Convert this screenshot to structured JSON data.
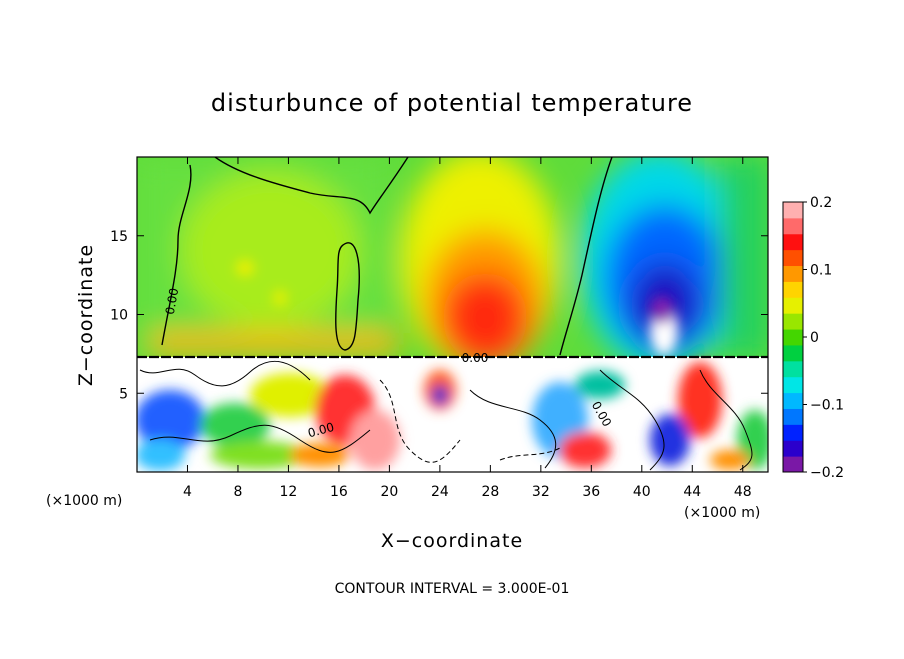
{
  "chart_data": {
    "type": "heatmap",
    "title": "disturbunce of potential temperature",
    "xlabel": "X−coordinate",
    "ylabel": "Z−coordinate",
    "x_unit": "(×1000 m)",
    "y_unit": "(×1000 m)",
    "xlim": [
      0,
      50
    ],
    "ylim": [
      0,
      20
    ],
    "x_ticks": [
      4,
      8,
      12,
      16,
      20,
      24,
      28,
      32,
      36,
      40,
      44,
      48
    ],
    "y_ticks": [
      5,
      10,
      15
    ],
    "x_tick_labels": [
      "4",
      "8",
      "12",
      "16",
      "20",
      "24",
      "28",
      "32",
      "36",
      "40",
      "44",
      "48"
    ],
    "y_tick_labels": [
      "5",
      "10",
      "15"
    ],
    "colorbar": {
      "range": [
        -0.2,
        0.2
      ],
      "tick_labels": [
        "0.2",
        "0.1",
        "0",
        "−0.1",
        "−0.2"
      ],
      "colors": [
        "#7a18a6",
        "#2b00cc",
        "#0022ff",
        "#0077ff",
        "#00b8ff",
        "#00e6e6",
        "#00e0a0",
        "#00d040",
        "#44d600",
        "#99e600",
        "#e6f000",
        "#ffd400",
        "#ff9800",
        "#ff5000",
        "#ff1010",
        "#ff6a6a",
        "#ffb0b0"
      ]
    },
    "contour_labels": [
      "0.00",
      "0.00",
      "0.00",
      "0.00"
    ],
    "contour_interval": "CONTOUR INTERVAL = 3.000E-01",
    "features": [
      {
        "name": "warm anomaly",
        "x_center": 28,
        "z_center": 10,
        "value": 0.18
      },
      {
        "name": "cold anomaly",
        "x_center": 42,
        "z_center": 11,
        "value": -0.2
      },
      {
        "name": "boundary layer",
        "z_top": 7.3,
        "note": "turbulent, saturated beyond colour range"
      }
    ]
  }
}
